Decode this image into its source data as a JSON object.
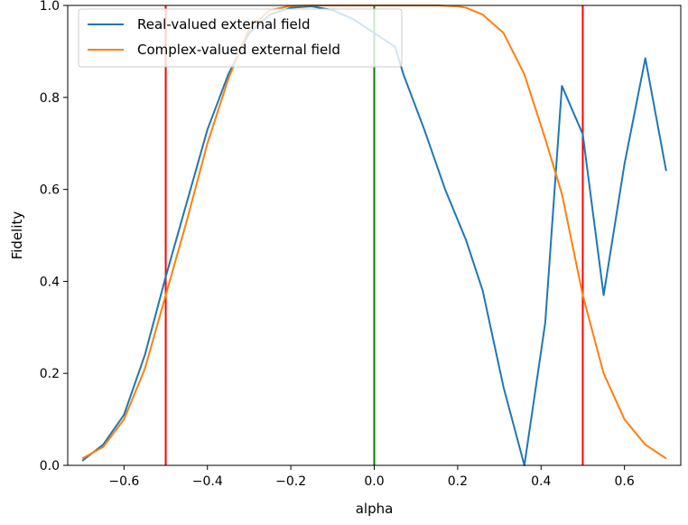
{
  "chart_data": {
    "type": "line",
    "xlabel": "alpha",
    "ylabel": "Fidelity",
    "xlim": [
      -0.735,
      0.735
    ],
    "ylim": [
      0.0,
      1.0
    ],
    "xticks": [
      -0.6,
      -0.4,
      -0.2,
      0.0,
      0.2,
      0.4,
      0.6
    ],
    "xtick_labels": [
      "−0.6",
      "−0.4",
      "−0.2",
      "0.0",
      "0.2",
      "0.4",
      "0.6"
    ],
    "yticks": [
      0.0,
      0.2,
      0.4,
      0.6,
      0.8,
      1.0
    ],
    "ytick_labels": [
      "0.0",
      "0.2",
      "0.4",
      "0.6",
      "0.8",
      "1.0"
    ],
    "grid": false,
    "legend_position": "top-left",
    "series": [
      {
        "name": "Real-valued external field",
        "color": "#1f77b4",
        "x": [
          -0.7,
          -0.65,
          -0.6,
          -0.55,
          -0.5,
          -0.45,
          -0.4,
          -0.35,
          -0.3,
          -0.25,
          -0.2,
          -0.15,
          -0.1,
          -0.05,
          0.0,
          0.05,
          0.07,
          0.12,
          0.17,
          0.22,
          0.26,
          0.31,
          0.36,
          0.41,
          0.45,
          0.5,
          0.55,
          0.6,
          0.65,
          0.7
        ],
        "y": [
          0.01,
          0.045,
          0.11,
          0.24,
          0.41,
          0.57,
          0.73,
          0.85,
          0.94,
          0.98,
          0.995,
          0.998,
          0.99,
          0.97,
          0.94,
          0.91,
          0.85,
          0.73,
          0.6,
          0.49,
          0.38,
          0.17,
          0.0,
          0.31,
          0.825,
          0.72,
          0.37,
          0.655,
          0.885,
          0.64
        ]
      },
      {
        "name": "Complex-valued external field",
        "color": "#ff7f0e",
        "x": [
          -0.7,
          -0.65,
          -0.6,
          -0.55,
          -0.5,
          -0.45,
          -0.4,
          -0.35,
          -0.3,
          -0.25,
          -0.2,
          -0.15,
          -0.1,
          -0.05,
          0.0,
          0.05,
          0.1,
          0.15,
          0.2,
          0.22,
          0.26,
          0.31,
          0.36,
          0.41,
          0.45,
          0.5,
          0.55,
          0.6,
          0.65,
          0.7
        ],
        "y": [
          0.015,
          0.04,
          0.1,
          0.21,
          0.37,
          0.53,
          0.7,
          0.84,
          0.95,
          0.99,
          0.999,
          1.0,
          1.0,
          1.0,
          1.0,
          1.0,
          1.0,
          1.0,
          0.998,
          0.995,
          0.98,
          0.94,
          0.85,
          0.71,
          0.59,
          0.37,
          0.2,
          0.1,
          0.045,
          0.015
        ]
      }
    ],
    "vertical_lines": [
      {
        "x": -0.5,
        "color": "#ff0000"
      },
      {
        "x": 0.0,
        "color": "#008000"
      },
      {
        "x": 0.5,
        "color": "#ff0000"
      }
    ]
  }
}
